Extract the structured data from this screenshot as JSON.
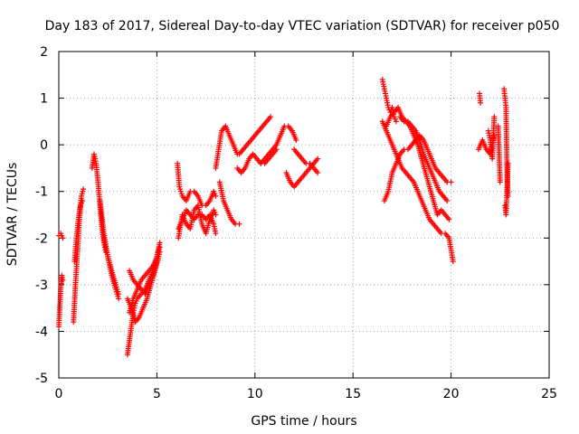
{
  "chart_data": {
    "type": "scatter",
    "title": "Day 183 of 2017, Sidereal Day-to-day VTEC variation (SDTVAR) for receiver p050",
    "xlabel": "GPS time / hours",
    "ylabel": "SDTVAR / TECUs",
    "xlim": [
      0,
      25
    ],
    "ylim": [
      -5,
      2
    ],
    "xticks": [
      0,
      5,
      10,
      15,
      20,
      25
    ],
    "yticks": [
      -5,
      -4,
      -3,
      -2,
      -1,
      0,
      1,
      2
    ],
    "grid": true,
    "marker": "+",
    "color": "#ff0000",
    "segments": [
      {
        "x": [
          0.0,
          0.05,
          0.1,
          0.15,
          0.2
        ],
        "y": [
          -3.9,
          -3.5,
          -3.1,
          -2.8,
          -2.9
        ]
      },
      {
        "x": [
          0.0,
          0.1,
          0.2
        ],
        "y": [
          -1.95,
          -1.9,
          -2.0
        ]
      },
      {
        "x": [
          0.75,
          0.85,
          0.95,
          1.05,
          1.15,
          1.25
        ],
        "y": [
          -3.8,
          -3.0,
          -2.3,
          -1.6,
          -1.1,
          -0.95
        ]
      },
      {
        "x": [
          0.8,
          0.9,
          1.0,
          1.1,
          1.2
        ],
        "y": [
          -2.5,
          -2.0,
          -1.6,
          -1.3,
          -1.2
        ]
      },
      {
        "x": [
          1.7,
          1.8,
          1.9,
          2.0,
          2.1,
          2.2,
          2.3,
          2.4
        ],
        "y": [
          -0.5,
          -0.2,
          -0.4,
          -0.8,
          -1.3,
          -1.8,
          -2.1,
          -2.3
        ]
      },
      {
        "x": [
          2.1,
          2.3,
          2.5,
          2.7,
          2.9,
          3.05
        ],
        "y": [
          -1.2,
          -1.9,
          -2.4,
          -2.8,
          -3.1,
          -3.3
        ]
      },
      {
        "x": [
          2.3,
          2.5,
          2.7,
          2.9,
          3.05
        ],
        "y": [
          -2.0,
          -2.4,
          -2.7,
          -3.0,
          -3.2
        ]
      },
      {
        "x": [
          3.5,
          3.6,
          3.7,
          3.8,
          3.9,
          4.0,
          4.2,
          4.4,
          4.6,
          4.8,
          5.0,
          5.15
        ],
        "y": [
          -4.5,
          -4.2,
          -3.9,
          -3.6,
          -3.4,
          -3.3,
          -3.2,
          -3.1,
          -2.9,
          -2.7,
          -2.4,
          -2.1
        ]
      },
      {
        "x": [
          3.6,
          3.8,
          4.0,
          4.2,
          4.4,
          4.6,
          4.8,
          5.0,
          5.15
        ],
        "y": [
          -3.6,
          -3.3,
          -3.1,
          -2.9,
          -2.8,
          -2.7,
          -2.6,
          -2.4,
          -2.2
        ]
      },
      {
        "x": [
          3.6,
          3.8,
          4.0,
          4.2,
          4.4,
          4.6,
          4.8,
          5.0,
          5.15
        ],
        "y": [
          -2.7,
          -2.9,
          -3.0,
          -3.1,
          -3.2,
          -3.0,
          -2.8,
          -2.5,
          -2.3
        ]
      },
      {
        "x": [
          3.5,
          3.7,
          3.9,
          4.1,
          4.3,
          4.5,
          4.7,
          4.9,
          5.1
        ],
        "y": [
          -3.3,
          -3.5,
          -3.8,
          -3.7,
          -3.5,
          -3.3,
          -3.0,
          -2.7,
          -2.4
        ]
      },
      {
        "x": [
          6.05,
          6.15,
          6.3,
          6.5,
          6.7,
          6.9,
          7.1,
          7.3,
          7.5,
          7.7,
          7.9,
          8.0
        ],
        "y": [
          -0.4,
          -0.9,
          -1.1,
          -1.2,
          -1.0,
          -1.0,
          -1.1,
          -1.3,
          -1.3,
          -1.2,
          -1.0,
          -1.1
        ]
      },
      {
        "x": [
          6.1,
          6.3,
          6.5,
          6.7,
          6.9,
          7.1,
          7.3,
          7.5,
          7.7,
          7.9,
          8.0
        ],
        "y": [
          -1.8,
          -1.6,
          -1.4,
          -1.5,
          -1.6,
          -1.5,
          -1.5,
          -1.6,
          -1.5,
          -1.7,
          -1.9
        ]
      },
      {
        "x": [
          6.1,
          6.3,
          6.5,
          6.7,
          6.9,
          7.1,
          7.3,
          7.5,
          7.7,
          7.9,
          8.0
        ],
        "y": [
          -2.0,
          -1.5,
          -1.7,
          -1.8,
          -1.4,
          -1.3,
          -1.7,
          -1.9,
          -1.6,
          -1.4,
          -1.5
        ]
      },
      {
        "x": [
          8.0,
          8.15,
          8.3,
          8.5,
          8.7,
          8.9,
          9.1
        ],
        "y": [
          -0.5,
          -0.1,
          0.3,
          0.4,
          0.2,
          0.0,
          -0.2
        ]
      },
      {
        "x": [
          8.2,
          8.4,
          8.6,
          8.8,
          9.0,
          9.2
        ],
        "y": [
          -0.8,
          -1.2,
          -1.4,
          -1.6,
          -1.7,
          -1.7
        ]
      },
      {
        "x": [
          9.2,
          9.4,
          9.6,
          9.8,
          10.0,
          10.2,
          10.4,
          10.6,
          10.8
        ],
        "y": [
          -0.2,
          -0.1,
          0.0,
          0.1,
          0.2,
          0.3,
          0.4,
          0.5,
          0.6
        ]
      },
      {
        "x": [
          9.1,
          9.3,
          9.5,
          9.7,
          9.9,
          10.1,
          10.3,
          10.5,
          10.7,
          10.9,
          11.1
        ],
        "y": [
          -0.5,
          -0.6,
          -0.5,
          -0.3,
          -0.2,
          -0.3,
          -0.4,
          -0.4,
          -0.3,
          -0.2,
          -0.1
        ]
      },
      {
        "x": [
          10.3,
          10.5,
          10.7,
          10.9,
          11.1,
          11.3,
          11.5,
          11.7,
          11.9,
          12.1
        ],
        "y": [
          -0.4,
          -0.3,
          -0.2,
          -0.1,
          0.0,
          0.2,
          0.4,
          0.4,
          0.3,
          0.1
        ]
      },
      {
        "x": [
          11.6,
          11.8,
          12.0,
          12.2,
          12.4,
          12.6,
          12.8,
          13.0,
          13.2
        ],
        "y": [
          -0.6,
          -0.8,
          -0.9,
          -0.8,
          -0.7,
          -0.6,
          -0.5,
          -0.4,
          -0.3
        ]
      },
      {
        "x": [
          12.0,
          12.2,
          12.4,
          12.6,
          12.8,
          13.0,
          13.2
        ],
        "y": [
          -0.1,
          -0.2,
          -0.3,
          -0.4,
          -0.4,
          -0.5,
          -0.6
        ]
      },
      {
        "x": [
          16.5,
          16.6,
          16.7,
          16.8,
          16.9,
          17.0,
          17.1,
          17.2
        ],
        "y": [
          1.4,
          1.2,
          1.0,
          0.8,
          0.7,
          0.8,
          0.6,
          0.5
        ]
      },
      {
        "x": [
          16.5,
          16.7,
          16.9,
          17.1,
          17.3,
          17.5,
          17.7,
          17.9,
          18.1,
          18.3,
          18.5,
          18.7,
          18.9,
          19.1,
          19.3,
          19.5,
          19.7,
          19.9,
          20.1
        ],
        "y": [
          0.5,
          0.3,
          0.1,
          -0.1,
          -0.3,
          -0.5,
          -0.6,
          -0.7,
          -0.8,
          -1.0,
          -1.2,
          -1.4,
          -1.6,
          -1.7,
          -1.8,
          -1.9,
          -1.9,
          -2.0,
          -2.5
        ]
      },
      {
        "x": [
          16.6,
          16.8,
          17.0,
          17.2,
          17.4,
          17.6,
          17.8,
          18.0,
          18.2,
          18.4,
          18.6,
          18.8,
          19.0,
          19.2,
          19.4,
          19.6,
          19.8,
          20.0
        ],
        "y": [
          -1.2,
          -1.0,
          -0.6,
          -0.4,
          -0.2,
          -0.1,
          -0.1,
          0.0,
          0.1,
          0.2,
          0.1,
          -0.1,
          -0.3,
          -0.5,
          -0.6,
          -0.7,
          -0.8,
          -0.8
        ]
      },
      {
        "x": [
          16.7,
          16.9,
          17.1,
          17.3,
          17.5,
          17.7,
          17.9,
          18.1,
          18.3,
          18.5,
          18.7,
          18.9,
          19.1,
          19.3,
          19.5,
          19.7,
          19.9
        ],
        "y": [
          0.4,
          0.6,
          0.7,
          0.8,
          0.6,
          0.5,
          0.4,
          0.2,
          0.0,
          -0.3,
          -0.6,
          -0.9,
          -1.2,
          -1.5,
          -1.4,
          -1.5,
          -1.6
        ]
      },
      {
        "x": [
          17.4,
          17.6,
          17.8,
          18.0,
          18.2,
          18.4,
          18.6,
          18.8,
          19.0,
          19.2,
          19.4,
          19.6,
          19.8
        ],
        "y": [
          0.6,
          0.5,
          0.5,
          0.4,
          0.3,
          0.1,
          -0.2,
          -0.4,
          -0.6,
          -0.8,
          -1.0,
          -1.1,
          -1.2
        ]
      },
      {
        "x": [
          21.45,
          21.5
        ],
        "y": [
          1.1,
          0.9
        ]
      },
      {
        "x": [
          21.4,
          21.6,
          21.8,
          22.0,
          22.1,
          22.2
        ],
        "y": [
          -0.1,
          0.1,
          -0.1,
          -0.2,
          0.0,
          0.2
        ]
      },
      {
        "x": [
          21.9,
          22.0,
          22.1,
          22.2
        ],
        "y": [
          0.3,
          0.1,
          -0.3,
          0.6
        ]
      },
      {
        "x": [
          22.4,
          22.5
        ],
        "y": [
          0.4,
          -0.8
        ]
      },
      {
        "x": [
          22.7,
          22.75,
          22.8,
          22.85,
          22.9
        ],
        "y": [
          1.2,
          1.0,
          0.8,
          -0.5,
          -1.1
        ]
      },
      {
        "x": [
          22.75,
          22.8,
          22.85,
          22.9
        ],
        "y": [
          -1.3,
          -1.5,
          -1.0,
          -0.4
        ]
      }
    ]
  }
}
